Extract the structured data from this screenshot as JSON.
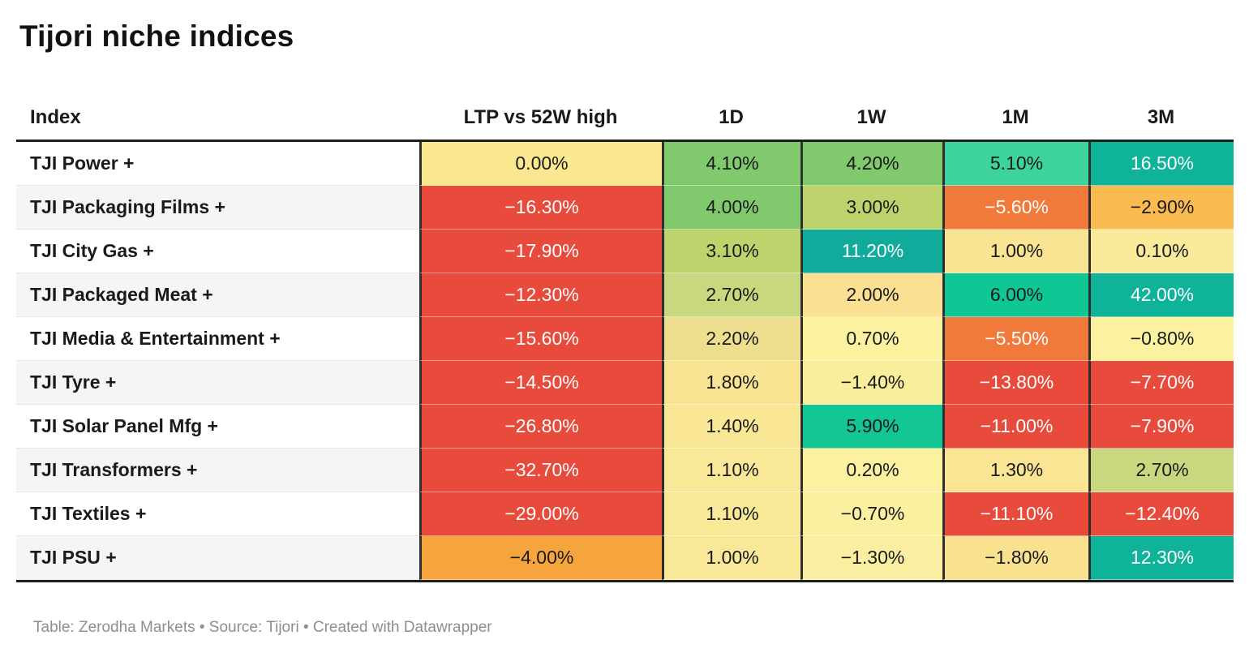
{
  "title": "Tijori niche indices",
  "footer": {
    "text": "Table: Zerodha Markets • Source: Tijori • Created with Datawrapper"
  },
  "colors": {
    "header_rule": "#1e1e1e",
    "column_separator": "#2e2e2e",
    "zebra_even": "#ffffff",
    "zebra_odd": "#f5f5f5",
    "red": "#e84b3c",
    "orange": "#f1793a",
    "amber": "#f9bb50",
    "deep_teal": "#0eb39a",
    "bright_green": "#0fc795",
    "green": "#80c96c",
    "yellow_green": "#bdd46c",
    "pale_yellow": "#f9e897"
  },
  "table": {
    "columns": [
      "Index",
      "LTP vs 52W high",
      "1D",
      "1W",
      "1M",
      "3M"
    ],
    "rows": [
      {
        "label": "TJI Power +",
        "cells": [
          {
            "text": "0.00%",
            "bg": "#f9e88f",
            "fg": "#1a1a1a"
          },
          {
            "text": "4.10%",
            "bg": "#80c96c",
            "fg": "#1a1a1a"
          },
          {
            "text": "4.20%",
            "bg": "#80c96c",
            "fg": "#1a1a1a"
          },
          {
            "text": "5.10%",
            "bg": "#3cd39c",
            "fg": "#1a1a1a"
          },
          {
            "text": "16.50%",
            "bg": "#0eb39a",
            "fg": "#ffffff"
          }
        ]
      },
      {
        "label": "TJI Packaging Films +",
        "cells": [
          {
            "text": "−16.30%",
            "bg": "#e84b3c",
            "fg": "#ffffff"
          },
          {
            "text": "4.00%",
            "bg": "#80c96c",
            "fg": "#1a1a1a"
          },
          {
            "text": "3.00%",
            "bg": "#bdd46c",
            "fg": "#1a1a1a"
          },
          {
            "text": "−5.60%",
            "bg": "#f1793a",
            "fg": "#ffffff"
          },
          {
            "text": "−2.90%",
            "bg": "#f9bb50",
            "fg": "#1a1a1a"
          }
        ]
      },
      {
        "label": "TJI City Gas +",
        "cells": [
          {
            "text": "−17.90%",
            "bg": "#e84b3c",
            "fg": "#ffffff"
          },
          {
            "text": "3.10%",
            "bg": "#bdd46c",
            "fg": "#1a1a1a"
          },
          {
            "text": "11.20%",
            "bg": "#11ab9c",
            "fg": "#ffffff"
          },
          {
            "text": "1.00%",
            "bg": "#f9e493",
            "fg": "#1a1a1a"
          },
          {
            "text": "0.10%",
            "bg": "#faeb9a",
            "fg": "#1a1a1a"
          }
        ]
      },
      {
        "label": "TJI Packaged Meat +",
        "cells": [
          {
            "text": "−12.30%",
            "bg": "#e84b3c",
            "fg": "#ffffff"
          },
          {
            "text": "2.70%",
            "bg": "#c8d87e",
            "fg": "#1a1a1a"
          },
          {
            "text": "2.00%",
            "bg": "#fbdf92",
            "fg": "#1a1a1a"
          },
          {
            "text": "6.00%",
            "bg": "#0fc795",
            "fg": "#1a1a1a"
          },
          {
            "text": "42.00%",
            "bg": "#0eb39a",
            "fg": "#ffffff"
          }
        ]
      },
      {
        "label": "TJI Media & Entertainment +",
        "cells": [
          {
            "text": "−15.60%",
            "bg": "#e84b3c",
            "fg": "#ffffff"
          },
          {
            "text": "2.20%",
            "bg": "#eedf8e",
            "fg": "#1a1a1a"
          },
          {
            "text": "0.70%",
            "bg": "#fbf19f",
            "fg": "#1a1a1a"
          },
          {
            "text": "−5.50%",
            "bg": "#f1793a",
            "fg": "#ffffff"
          },
          {
            "text": "−0.80%",
            "bg": "#fbf19f",
            "fg": "#1a1a1a"
          }
        ]
      },
      {
        "label": "TJI Tyre +",
        "cells": [
          {
            "text": "−14.50%",
            "bg": "#e84b3c",
            "fg": "#ffffff"
          },
          {
            "text": "1.80%",
            "bg": "#f8e492",
            "fg": "#1a1a1a"
          },
          {
            "text": "−1.40%",
            "bg": "#f9ee9b",
            "fg": "#1a1a1a"
          },
          {
            "text": "−13.80%",
            "bg": "#e84b3c",
            "fg": "#ffffff"
          },
          {
            "text": "−7.70%",
            "bg": "#e84b3c",
            "fg": "#ffffff"
          }
        ]
      },
      {
        "label": "TJI Solar Panel Mfg +",
        "cells": [
          {
            "text": "−26.80%",
            "bg": "#e84b3c",
            "fg": "#ffffff"
          },
          {
            "text": "1.40%",
            "bg": "#f9e795",
            "fg": "#1a1a1a"
          },
          {
            "text": "5.90%",
            "bg": "#13c795",
            "fg": "#1a1a1a"
          },
          {
            "text": "−11.00%",
            "bg": "#e84b3c",
            "fg": "#ffffff"
          },
          {
            "text": "−7.90%",
            "bg": "#e84b3c",
            "fg": "#ffffff"
          }
        ]
      },
      {
        "label": "TJI Transformers +",
        "cells": [
          {
            "text": "−32.70%",
            "bg": "#e84b3c",
            "fg": "#ffffff"
          },
          {
            "text": "1.10%",
            "bg": "#f9e897",
            "fg": "#1a1a1a"
          },
          {
            "text": "0.20%",
            "bg": "#fbf1a0",
            "fg": "#1a1a1a"
          },
          {
            "text": "1.30%",
            "bg": "#f9e593",
            "fg": "#1a1a1a"
          },
          {
            "text": "2.70%",
            "bg": "#c8d87e",
            "fg": "#1a1a1a"
          }
        ]
      },
      {
        "label": "TJI Textiles +",
        "cells": [
          {
            "text": "−29.00%",
            "bg": "#e84b3c",
            "fg": "#ffffff"
          },
          {
            "text": "1.10%",
            "bg": "#f9e897",
            "fg": "#1a1a1a"
          },
          {
            "text": "−0.70%",
            "bg": "#fbf0a0",
            "fg": "#1a1a1a"
          },
          {
            "text": "−11.10%",
            "bg": "#e84b3c",
            "fg": "#ffffff"
          },
          {
            "text": "−12.40%",
            "bg": "#e84b3c",
            "fg": "#ffffff"
          }
        ]
      },
      {
        "label": "TJI PSU +",
        "cells": [
          {
            "text": "−4.00%",
            "bg": "#f6a53c",
            "fg": "#1a1a1a"
          },
          {
            "text": "1.00%",
            "bg": "#f9e897",
            "fg": "#1a1a1a"
          },
          {
            "text": "−1.30%",
            "bg": "#faefa0",
            "fg": "#1a1a1a"
          },
          {
            "text": "−1.80%",
            "bg": "#f8e290",
            "fg": "#1a1a1a"
          },
          {
            "text": "12.30%",
            "bg": "#0eb39a",
            "fg": "#ffffff"
          }
        ]
      }
    ]
  },
  "chart_data": {
    "type": "table",
    "title": "Tijori niche indices",
    "columns": [
      "Index",
      "LTP vs 52W high",
      "1D",
      "1W",
      "1M",
      "3M"
    ],
    "unit": "%",
    "heatmap": "diverging red → yellow → green/teal on cell values",
    "rows": [
      [
        "TJI Power +",
        0.0,
        4.1,
        4.2,
        5.1,
        16.5
      ],
      [
        "TJI Packaging Films +",
        -16.3,
        4.0,
        3.0,
        -5.6,
        -2.9
      ],
      [
        "TJI City Gas +",
        -17.9,
        3.1,
        11.2,
        1.0,
        0.1
      ],
      [
        "TJI Packaged Meat +",
        -12.3,
        2.7,
        2.0,
        6.0,
        42.0
      ],
      [
        "TJI Media & Entertainment +",
        -15.6,
        2.2,
        0.7,
        -5.5,
        -0.8
      ],
      [
        "TJI Tyre +",
        -14.5,
        1.8,
        -1.4,
        -13.8,
        -7.7
      ],
      [
        "TJI Solar Panel Mfg +",
        -26.8,
        1.4,
        5.9,
        -11.0,
        -7.9
      ],
      [
        "TJI Transformers +",
        -32.7,
        1.1,
        0.2,
        1.3,
        2.7
      ],
      [
        "TJI Textiles +",
        -29.0,
        1.1,
        -0.7,
        -11.1,
        -12.4
      ],
      [
        "TJI PSU +",
        -4.0,
        1.0,
        -1.3,
        -1.8,
        12.3
      ]
    ],
    "footer": "Table: Zerodha Markets • Source: Tijori • Created with Datawrapper"
  }
}
